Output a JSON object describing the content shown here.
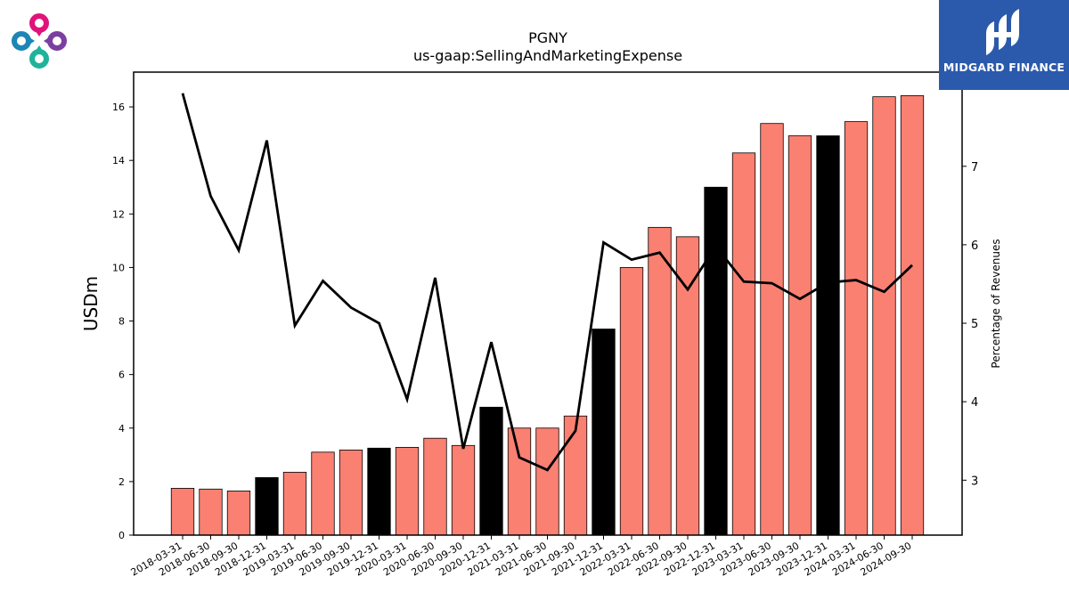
{
  "brand": {
    "name": "MIDGARD FINANCE",
    "logo_icon": "clover-logo-icon",
    "box_color": "#2b5aac"
  },
  "chart_data": {
    "type": "bar",
    "title": "PGNY",
    "subtitle": "us-gaap:SellingAndMarketingExpense",
    "xlabel": "",
    "ylabel": "USDm",
    "y2label": "Percentage of Revenues",
    "ylim": [
      0,
      17.3
    ],
    "yticks": [
      0,
      2,
      4,
      6,
      8,
      10,
      12,
      14,
      16
    ],
    "y2lim": [
      2.3,
      8.2
    ],
    "y2ticks": [
      3,
      4,
      5,
      6,
      7
    ],
    "grid": false,
    "colors": {
      "bar": "#fa8072",
      "bar_year_end": "#000000",
      "line": "#000000"
    },
    "categories": [
      "2018-03-31",
      "2018-06-30",
      "2018-09-30",
      "2018-12-31",
      "2019-03-31",
      "2019-06-30",
      "2019-09-30",
      "2019-12-31",
      "2020-03-31",
      "2020-06-30",
      "2020-09-30",
      "2020-12-31",
      "2021-03-31",
      "2021-06-30",
      "2021-09-30",
      "2021-12-31",
      "2022-03-31",
      "2022-06-30",
      "2022-09-30",
      "2022-12-31",
      "2023-03-31",
      "2023-06-30",
      "2023-09-30",
      "2023-12-31",
      "2024-03-31",
      "2024-06-30",
      "2024-09-30"
    ],
    "series": [
      {
        "type": "bar",
        "axis": "left",
        "values": [
          1.75,
          1.72,
          1.65,
          2.15,
          2.35,
          3.1,
          3.18,
          3.25,
          3.28,
          3.62,
          3.35,
          4.78,
          4.0,
          4.0,
          4.45,
          7.7,
          10.0,
          11.5,
          11.15,
          13.0,
          14.28,
          15.38,
          14.92,
          14.92,
          15.45,
          16.38,
          16.42
        ]
      },
      {
        "type": "line",
        "axis": "right",
        "values": [
          7.93,
          6.62,
          5.93,
          7.33,
          4.97,
          5.54,
          5.2,
          5.0,
          4.03,
          5.58,
          3.4,
          4.76,
          3.29,
          3.13,
          3.63,
          6.03,
          5.81,
          5.9,
          5.43,
          5.98,
          5.53,
          5.51,
          5.31,
          5.52,
          5.55,
          5.4,
          5.74
        ]
      }
    ]
  }
}
